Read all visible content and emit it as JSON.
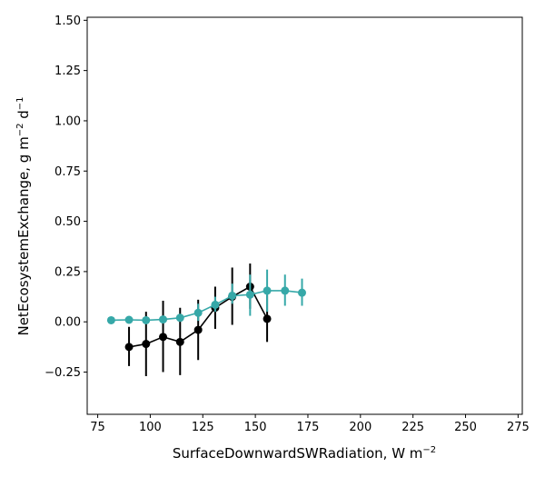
{
  "chart_data": {
    "type": "line",
    "xlabel": "SurfaceDownwardSWRadiation,",
    "xunit": "W m",
    "xunit_sup": "−2",
    "ylabel": "NetEcosystemExchange,",
    "yunit_a": "g m",
    "yunit_a_sup": "−2",
    "yunit_b": "d",
    "yunit_b_sup": "−1",
    "xlim": [
      70,
      277
    ],
    "ylim": [
      -0.46,
      1.515
    ],
    "xticks": [
      {
        "value": 75,
        "label": "75"
      },
      {
        "value": 100,
        "label": "100"
      },
      {
        "value": 125,
        "label": "125"
      },
      {
        "value": 150,
        "label": "150"
      },
      {
        "value": 175,
        "label": "175"
      },
      {
        "value": 200,
        "label": "200"
      },
      {
        "value": 225,
        "label": "225"
      },
      {
        "value": 250,
        "label": "250"
      },
      {
        "value": 275,
        "label": "275"
      }
    ],
    "yticks": [
      {
        "value": -0.25,
        "label": "−0.25"
      },
      {
        "value": 0.0,
        "label": "0.00"
      },
      {
        "value": 0.25,
        "label": "0.25"
      },
      {
        "value": 0.5,
        "label": "0.50"
      },
      {
        "value": 0.75,
        "label": "0.75"
      },
      {
        "value": 1.0,
        "label": "1.00"
      },
      {
        "value": 1.25,
        "label": "1.25"
      },
      {
        "value": 1.5,
        "label": "1.50"
      }
    ],
    "grid": false,
    "series": [
      {
        "color": "#000000",
        "x": [
          89.9,
          98.0,
          106.1,
          114.2,
          122.8,
          130.9,
          139.0,
          147.5,
          155.6
        ],
        "y": [
          -0.125,
          -0.11,
          -0.075,
          -0.1,
          -0.04,
          0.07,
          0.125,
          0.175,
          0.015
        ],
        "err_low": [
          -0.22,
          -0.27,
          -0.25,
          -0.265,
          -0.19,
          -0.035,
          -0.015,
          0.065,
          -0.1
        ],
        "err_high": [
          -0.025,
          0.05,
          0.105,
          0.07,
          0.11,
          0.175,
          0.27,
          0.29,
          0.135
        ]
      },
      {
        "color": "#36a8a8",
        "x": [
          81.4,
          89.9,
          98.0,
          106.1,
          114.2,
          122.8,
          130.9,
          139.0,
          147.5,
          155.6,
          164.1,
          172.2
        ],
        "y": [
          0.008,
          0.01,
          0.008,
          0.012,
          0.02,
          0.045,
          0.085,
          0.13,
          0.135,
          0.155,
          0.155,
          0.145
        ],
        "err_low": [
          0.008,
          0.01,
          0.008,
          0.012,
          0.02,
          0.005,
          0.05,
          0.09,
          0.03,
          0.05,
          0.08,
          0.08
        ],
        "err_high": [
          0.008,
          0.01,
          0.008,
          0.012,
          0.02,
          0.09,
          0.125,
          0.19,
          0.235,
          0.26,
          0.235,
          0.215
        ]
      }
    ]
  }
}
